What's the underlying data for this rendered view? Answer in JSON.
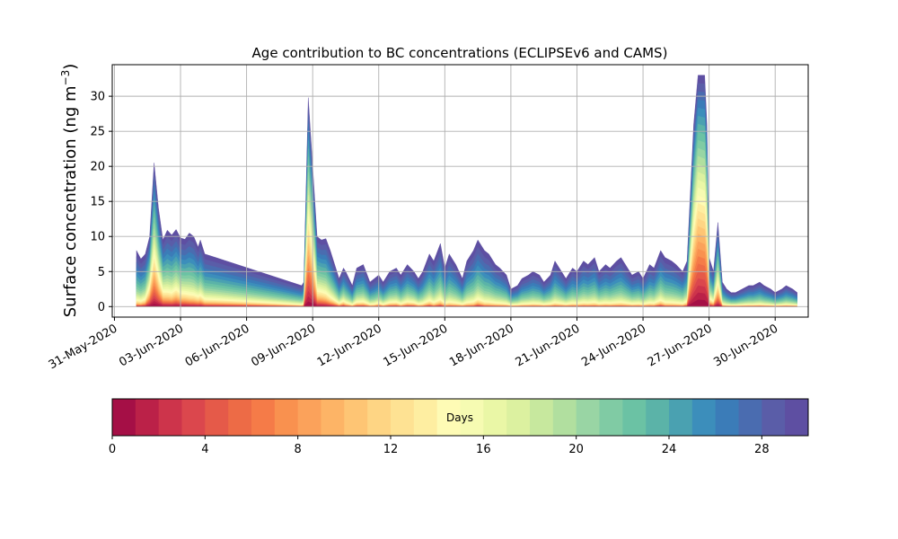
{
  "chart_data": {
    "type": "area",
    "subtype": "stacked",
    "title": "Age contribution to BC concentrations (ECLIPSEv6 and CAMS)",
    "ylabel_main": "Surface concentration (ng m",
    "ylabel_sup": "−3",
    "ylabel_close": ")",
    "xlabel": "",
    "x_range_days_from_31may": [
      -0.1,
      31.5
    ],
    "ylim": [
      -1.5,
      34.5
    ],
    "grid": true,
    "x_ticks": [
      {
        "day": 0,
        "label": "31-May-2020"
      },
      {
        "day": 3,
        "label": "03-Jun-2020"
      },
      {
        "day": 6,
        "label": "06-Jun-2020"
      },
      {
        "day": 9,
        "label": "09-Jun-2020"
      },
      {
        "day": 12,
        "label": "12-Jun-2020"
      },
      {
        "day": 15,
        "label": "15-Jun-2020"
      },
      {
        "day": 18,
        "label": "18-Jun-2020"
      },
      {
        "day": 21,
        "label": "21-Jun-2020"
      },
      {
        "day": 24,
        "label": "24-Jun-2020"
      },
      {
        "day": 27,
        "label": "27-Jun-2020"
      },
      {
        "day": 30,
        "label": "30-Jun-2020"
      }
    ],
    "y_ticks": [
      0,
      5,
      10,
      15,
      20,
      25,
      30
    ],
    "total_series": {
      "x": [
        1.0,
        1.2,
        1.4,
        1.6,
        1.8,
        2.0,
        2.2,
        2.4,
        2.6,
        2.8,
        3.0,
        3.2,
        3.4,
        3.6,
        3.8,
        3.9,
        4.1,
        4.3,
        4.5,
        4.6,
        8.5,
        8.6,
        8.8,
        9.0,
        9.2,
        9.4,
        9.6,
        9.8,
        10.2,
        10.4,
        10.5,
        10.8,
        11.0,
        11.3,
        11.6,
        11.8,
        12.0,
        12.2,
        12.5,
        12.8,
        13.0,
        13.3,
        13.6,
        13.8,
        14.0,
        14.3,
        14.5,
        14.8,
        15.0,
        15.2,
        15.5,
        15.8,
        16.0,
        16.3,
        16.5,
        16.8,
        17.0,
        17.3,
        17.5,
        17.8,
        18.0,
        18.3,
        18.5,
        18.8,
        19.0,
        19.3,
        19.5,
        19.8,
        20.0,
        20.3,
        20.5,
        20.8,
        21.0,
        21.3,
        21.5,
        21.8,
        22.0,
        22.3,
        22.5,
        22.8,
        23.0,
        23.3,
        23.5,
        23.8,
        24.0,
        24.3,
        24.5,
        24.8,
        25.0,
        25.3,
        25.5,
        25.8,
        26.0,
        26.3,
        26.5,
        26.8,
        26.9,
        27.0,
        27.2,
        27.4,
        27.6,
        27.8,
        28.0,
        28.2,
        28.5,
        28.8,
        29.0,
        29.3,
        29.5,
        29.8,
        30.0,
        30.3,
        30.5,
        30.8,
        31.0
      ],
      "y": [
        8.0,
        6.8,
        7.5,
        10.0,
        20.5,
        14.0,
        9.5,
        10.9,
        10.2,
        11.0,
        9.8,
        9.6,
        10.5,
        10.0,
        8.5,
        9.5,
        7.5,
        7.3,
        7.1,
        7.0,
        3.0,
        3.5,
        29.8,
        20.0,
        10.0,
        9.5,
        9.7,
        8.0,
        4.0,
        5.5,
        5.0,
        3.0,
        5.5,
        6.0,
        3.5,
        4.0,
        4.5,
        3.5,
        5.0,
        5.5,
        4.5,
        6.0,
        5.0,
        4.0,
        5.0,
        7.5,
        6.5,
        9.0,
        5.5,
        7.5,
        6.0,
        4.0,
        6.5,
        8.0,
        9.5,
        8.0,
        7.5,
        6.0,
        5.5,
        4.5,
        2.5,
        3.0,
        4.0,
        4.5,
        5.0,
        4.5,
        3.5,
        4.5,
        6.5,
        5.0,
        4.0,
        5.5,
        5.0,
        6.5,
        6.0,
        7.0,
        5.0,
        6.0,
        5.5,
        6.5,
        7.0,
        5.5,
        4.5,
        5.0,
        4.0,
        6.0,
        5.5,
        8.0,
        7.0,
        6.5,
        6.0,
        5.0,
        6.5,
        26.0,
        33.0,
        33.0,
        26.0,
        7.0,
        5.0,
        12.0,
        3.5,
        2.5,
        2.0,
        2.0,
        2.5,
        3.0,
        3.0,
        3.5,
        3.0,
        2.5,
        2.0,
        2.5,
        3.0,
        2.5,
        2.0
      ],
      "fresh_fraction": [
        0.1,
        0.1,
        0.15,
        0.4,
        0.55,
        0.45,
        0.3,
        0.25,
        0.25,
        0.3,
        0.25,
        0.25,
        0.2,
        0.2,
        0.2,
        0.2,
        0.15,
        0.15,
        0.15,
        0.15,
        0.05,
        0.1,
        0.7,
        0.6,
        0.3,
        0.3,
        0.25,
        0.2,
        0.1,
        0.15,
        0.1,
        0.05,
        0.1,
        0.1,
        0.05,
        0.05,
        0.1,
        0.05,
        0.1,
        0.1,
        0.05,
        0.1,
        0.1,
        0.05,
        0.05,
        0.1,
        0.05,
        0.1,
        0.05,
        0.05,
        0.05,
        0.05,
        0.05,
        0.05,
        0.1,
        0.05,
        0.05,
        0.05,
        0.05,
        0.05,
        0.05,
        0.05,
        0.05,
        0.05,
        0.05,
        0.05,
        0.05,
        0.05,
        0.05,
        0.05,
        0.05,
        0.05,
        0.05,
        0.05,
        0.05,
        0.05,
        0.05,
        0.05,
        0.05,
        0.05,
        0.05,
        0.05,
        0.05,
        0.05,
        0.05,
        0.05,
        0.05,
        0.1,
        0.05,
        0.05,
        0.05,
        0.05,
        0.1,
        0.7,
        0.85,
        0.8,
        0.7,
        0.2,
        0.15,
        0.4,
        0.05,
        0.05,
        0.05,
        0.05,
        0.05,
        0.05,
        0.05,
        0.05,
        0.05,
        0.05,
        0.05,
        0.05,
        0.05,
        0.05,
        0.05
      ]
    },
    "colorbar": {
      "label": "Days",
      "min": 0,
      "max": 30,
      "ticks": [
        0,
        4,
        8,
        12,
        16,
        20,
        24,
        28
      ],
      "colors": [
        "#a50f46",
        "#bb2148",
        "#cd344b",
        "#db474d",
        "#e55a49",
        "#ed6b46",
        "#f57b48",
        "#f9914f",
        "#fba25b",
        "#fdb466",
        "#fec574",
        "#fed584",
        "#fee293",
        "#feeea1",
        "#fefbb5",
        "#f6fbb2",
        "#eaf7a6",
        "#dcf1a0",
        "#c7e89e",
        "#b1df9f",
        "#99d5a4",
        "#80cba4",
        "#6bc2a4",
        "#5bb3a8",
        "#4aa1b1",
        "#3c8ebb",
        "#3b7cb8",
        "#4a6cb0",
        "#5a5da8",
        "#5e4fa2"
      ]
    }
  }
}
